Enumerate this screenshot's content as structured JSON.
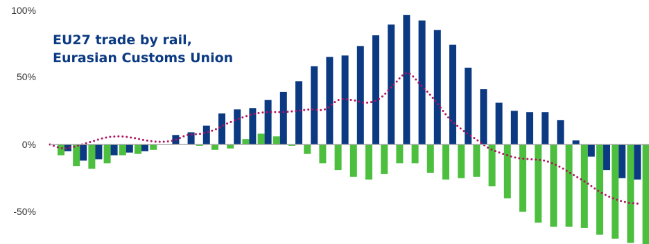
{
  "chart_data": {
    "type": "bar",
    "title_lines": [
      "EU27 trade by rail,",
      "Eurasian Customs Union"
    ],
    "y_ticks": [
      {
        "value": 100,
        "label": "100%"
      },
      {
        "value": 50,
        "label": "50%"
      },
      {
        "value": 0,
        "label": "0%"
      },
      {
        "value": -50,
        "label": "-50%"
      }
    ],
    "ylim": [
      -75,
      100
    ],
    "grid": false,
    "colors": {
      "green": "#4cbf3f",
      "blue": "#0b3a82",
      "line": "#b0135e",
      "axis": "#aaaaaa"
    },
    "series": [
      {
        "style": "bar",
        "color_key": "green",
        "values": [
          -8,
          -16,
          -18,
          -14,
          -8,
          -7,
          -4,
          0,
          0,
          -1,
          -4,
          -3,
          4,
          8,
          6,
          -1,
          -7,
          -14,
          -19,
          -24,
          -26,
          -22,
          -14,
          -14,
          -21,
          -26,
          -25,
          -24,
          -31,
          -40,
          -50,
          -58,
          -61,
          -61,
          -62,
          -67,
          -70,
          -73,
          -74
        ]
      },
      {
        "style": "bar",
        "color_key": "blue",
        "values": [
          -5,
          -12,
          -11,
          -8,
          -6,
          -5,
          0,
          7,
          9,
          14,
          23,
          26,
          27,
          33,
          39,
          47,
          58,
          65,
          66,
          73,
          81,
          89,
          96,
          92,
          85,
          74,
          57,
          41,
          31,
          25,
          24,
          24,
          18,
          3,
          -9,
          -19,
          -25,
          -26
        ]
      },
      {
        "style": "dotted-line",
        "color_key": "line",
        "values": [
          0,
          -3,
          -1,
          2,
          5,
          6,
          5,
          3,
          2,
          3,
          7,
          8,
          11,
          16,
          20,
          23,
          24,
          24,
          25,
          26,
          26,
          33,
          33,
          31,
          34,
          44,
          53,
          44,
          33,
          20,
          11,
          4,
          -3,
          -7,
          -10,
          -11,
          -12,
          -16,
          -22,
          -28,
          -35,
          -40,
          -43,
          -44
        ]
      }
    ]
  }
}
